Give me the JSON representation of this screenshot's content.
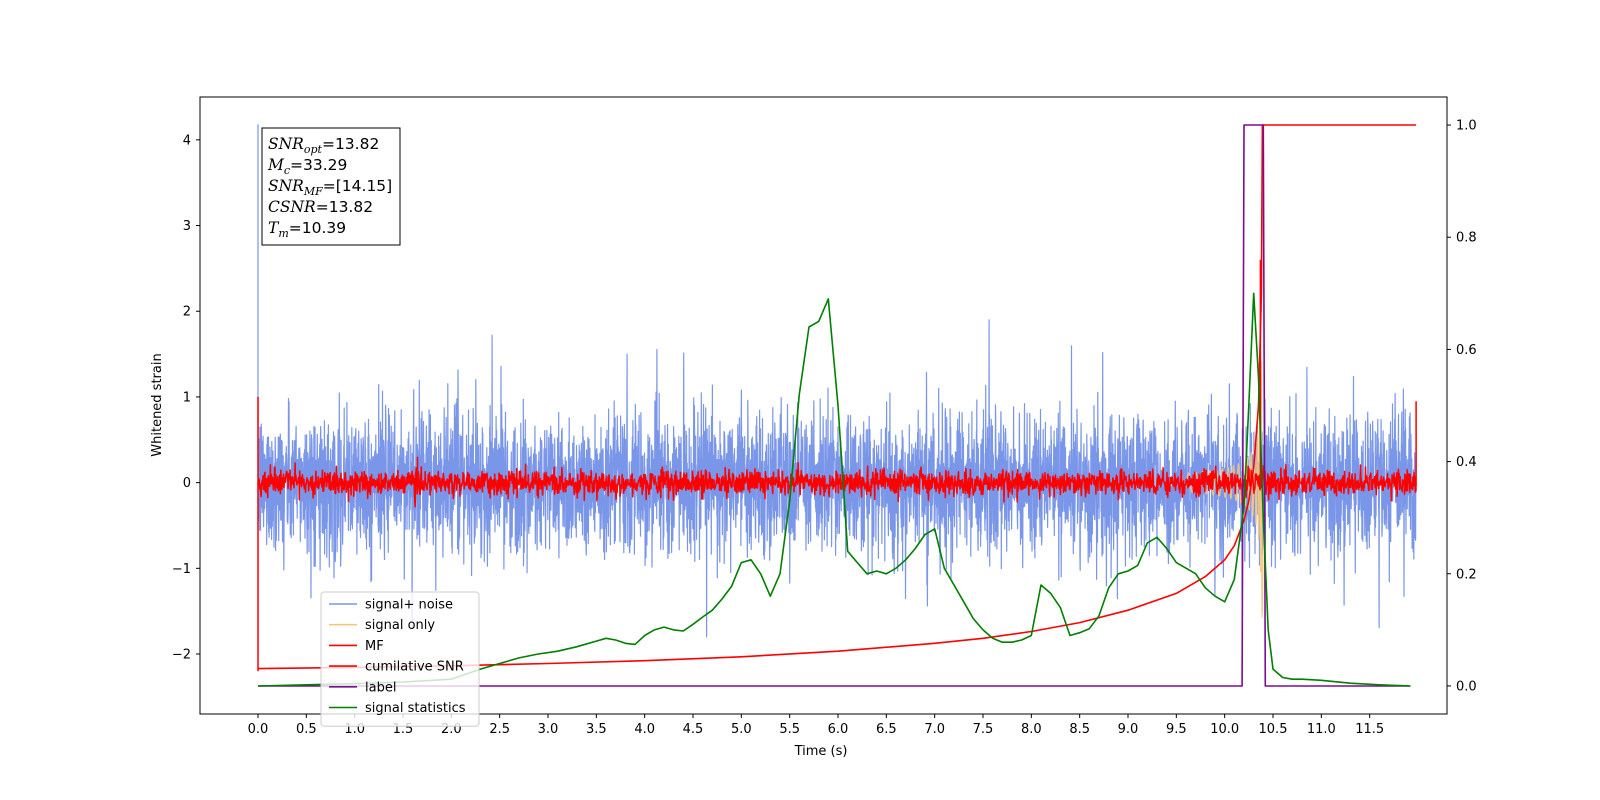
{
  "chart_data": {
    "type": "line",
    "xlabel": "Time (s)",
    "ylabel": "Whitened strain",
    "xlim": [
      -0.6,
      12.3
    ],
    "ylim": [
      -2.7,
      4.5
    ],
    "y2lim": [
      -0.05,
      1.05
    ],
    "x_ticks": [
      0.0,
      0.5,
      1.0,
      1.5,
      2.0,
      2.5,
      3.0,
      3.5,
      4.0,
      4.5,
      5.0,
      5.5,
      6.0,
      6.5,
      7.0,
      7.5,
      8.0,
      8.5,
      9.0,
      9.5,
      10.0,
      10.5,
      11.0,
      11.5
    ],
    "x_tick_labels": [
      "0.0",
      "0.5",
      "1.0",
      "1.5",
      "2.0",
      "2.5",
      "3.0",
      "3.5",
      "4.0",
      "4.5",
      "5.0",
      "5.5",
      "6.0",
      "6.5",
      "7.0",
      "7.5",
      "8.0",
      "8.5",
      "9.0",
      "9.5",
      "10.0",
      "10.5",
      "11.0",
      "11.5"
    ],
    "y_ticks": [
      -2,
      -1,
      0,
      1,
      2,
      3,
      4
    ],
    "y_tick_labels": [
      "−2",
      "−1",
      "0",
      "1",
      "2",
      "3",
      "4"
    ],
    "y2_ticks": [
      0.0,
      0.2,
      0.4,
      0.6,
      0.8,
      1.0
    ],
    "y2_tick_labels": [
      "0.0",
      "0.2",
      "0.4",
      "0.6",
      "0.8",
      "1.0"
    ],
    "grid": false,
    "legend_position": "lower-left",
    "annotation": {
      "lines": [
        {
          "sym": "SNR",
          "sub": "opt",
          "text": "=13.82"
        },
        {
          "sym": "M",
          "sub": "c",
          "text": "=33.29"
        },
        {
          "sym": "SNR",
          "sub": "MF",
          "text": "=[14.15]"
        },
        {
          "sym": "CSNR",
          "sub": "",
          "text": "=13.82"
        },
        {
          "sym": "T",
          "sub": "m",
          "text": "=10.39"
        }
      ]
    },
    "series": [
      {
        "name": "signal+ noise",
        "color": "#7a96e8",
        "axis": "left",
        "kind": "noise",
        "x_range": [
          0.0,
          11.98
        ],
        "noise_std": 0.55,
        "y_clip": [
          -2.0,
          1.9
        ],
        "spikes": [
          {
            "x": 0.0,
            "y": 4.18
          },
          {
            "x": 0.0,
            "y": -0.55
          }
        ]
      },
      {
        "name": "signal only",
        "color": "#f5c77e",
        "axis": "left",
        "kind": "chirp",
        "x_range": [
          9.6,
          10.42
        ],
        "t_merge": 10.39,
        "peak_amplitude": 1.6
      },
      {
        "name": "MF",
        "color": "#ff0000",
        "axis": "left",
        "kind": "noise",
        "x_range": [
          0.0,
          11.98
        ],
        "noise_std": 0.07,
        "spikes": [
          {
            "x": 0.0,
            "y": 1.0
          },
          {
            "x": 0.0,
            "y": -2.2
          },
          {
            "x": 1.65,
            "y": 0.3
          },
          {
            "x": 11.98,
            "y": 0.95
          },
          {
            "x": 11.98,
            "y": -0.05
          },
          {
            "x": 10.37,
            "y": 2.6
          }
        ]
      },
      {
        "name": "cumilative SNR",
        "color": "#ff0000",
        "axis": "right",
        "kind": "line",
        "x": [
          0.0,
          1.0,
          2.0,
          3.0,
          4.0,
          5.0,
          6.0,
          7.0,
          7.5,
          8.0,
          8.5,
          9.0,
          9.5,
          9.8,
          10.0,
          10.1,
          10.2,
          10.25,
          10.3,
          10.35,
          10.38,
          10.39,
          10.4,
          10.5,
          11.0,
          11.98
        ],
        "y": [
          0.031,
          0.033,
          0.036,
          0.04,
          0.045,
          0.052,
          0.062,
          0.076,
          0.085,
          0.097,
          0.113,
          0.135,
          0.165,
          0.195,
          0.225,
          0.25,
          0.295,
          0.33,
          0.39,
          0.5,
          0.7,
          1.0,
          1.0,
          1.0,
          1.0,
          1.0
        ]
      },
      {
        "name": "label",
        "color": "#7b0d8f",
        "axis": "right",
        "kind": "line",
        "x": [
          0.0,
          10.18,
          10.2,
          10.3,
          10.4,
          10.42,
          11.92
        ],
        "y": [
          0.0,
          0.0,
          1.0,
          1.0,
          1.0,
          0.0,
          0.0
        ]
      },
      {
        "name": "signal statistics",
        "color": "#007f00",
        "axis": "right",
        "kind": "line",
        "x": [
          0.0,
          0.5,
          1.0,
          1.5,
          2.0,
          2.3,
          2.5,
          2.7,
          2.9,
          3.1,
          3.3,
          3.5,
          3.6,
          3.7,
          3.8,
          3.9,
          4.0,
          4.1,
          4.2,
          4.3,
          4.4,
          4.5,
          4.6,
          4.7,
          4.8,
          4.9,
          5.0,
          5.1,
          5.2,
          5.3,
          5.4,
          5.5,
          5.6,
          5.7,
          5.8,
          5.9,
          6.0,
          6.1,
          6.2,
          6.3,
          6.4,
          6.5,
          6.6,
          6.7,
          6.8,
          6.9,
          7.0,
          7.1,
          7.2,
          7.3,
          7.4,
          7.5,
          7.6,
          7.7,
          7.8,
          7.9,
          8.0,
          8.1,
          8.2,
          8.3,
          8.4,
          8.5,
          8.6,
          8.7,
          8.8,
          8.9,
          9.0,
          9.1,
          9.2,
          9.3,
          9.4,
          9.5,
          9.6,
          9.7,
          9.8,
          9.9,
          10.0,
          10.1,
          10.2,
          10.25,
          10.3,
          10.35,
          10.4,
          10.45,
          10.5,
          10.6,
          10.7,
          10.8,
          11.0,
          11.3,
          11.6,
          11.92
        ],
        "y": [
          0.0,
          0.002,
          0.004,
          0.007,
          0.012,
          0.03,
          0.04,
          0.05,
          0.057,
          0.062,
          0.07,
          0.08,
          0.085,
          0.082,
          0.076,
          0.074,
          0.09,
          0.1,
          0.105,
          0.1,
          0.098,
          0.11,
          0.123,
          0.135,
          0.155,
          0.178,
          0.22,
          0.225,
          0.2,
          0.16,
          0.2,
          0.33,
          0.52,
          0.64,
          0.65,
          0.69,
          0.5,
          0.24,
          0.22,
          0.2,
          0.205,
          0.2,
          0.21,
          0.225,
          0.245,
          0.27,
          0.28,
          0.21,
          0.18,
          0.15,
          0.12,
          0.1,
          0.085,
          0.078,
          0.078,
          0.082,
          0.09,
          0.18,
          0.165,
          0.14,
          0.09,
          0.095,
          0.102,
          0.125,
          0.175,
          0.2,
          0.205,
          0.215,
          0.255,
          0.265,
          0.245,
          0.22,
          0.21,
          0.2,
          0.175,
          0.16,
          0.15,
          0.19,
          0.32,
          0.5,
          0.7,
          0.55,
          0.3,
          0.1,
          0.03,
          0.015,
          0.012,
          0.012,
          0.01,
          0.005,
          0.002,
          0.0
        ]
      }
    ]
  }
}
